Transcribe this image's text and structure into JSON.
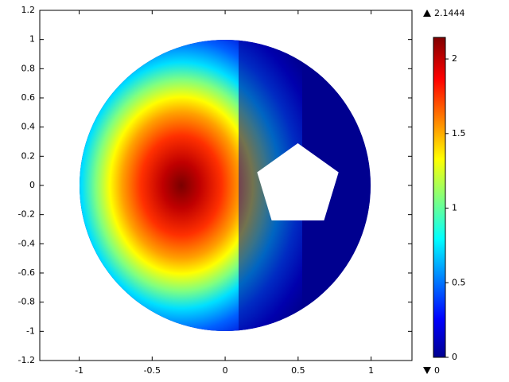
{
  "chart_data": {
    "type": "surface",
    "xlim": [
      -1.27,
      1.28
    ],
    "ylim": [
      -1.2,
      1.2
    ],
    "xticks": [
      -1,
      -0.5,
      0,
      0.5,
      1
    ],
    "yticks": [
      -1.2,
      -1,
      -0.8,
      -0.6,
      -0.4,
      -0.2,
      0,
      0.2,
      0.4,
      0.6,
      0.8,
      1,
      1.2
    ],
    "colorbar": {
      "lim": [
        0,
        2.1444
      ],
      "ticks": [
        0,
        0.5,
        1,
        1.5,
        2
      ]
    },
    "max": 2.1444,
    "min": 0
  }
}
